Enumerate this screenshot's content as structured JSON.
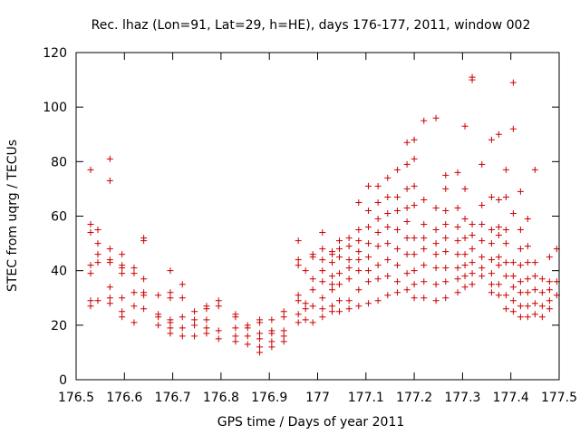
{
  "chart_data": {
    "type": "scatter",
    "title": "Rec. lhaz (Lon=91, Lat=29, h=HE), days 176-177, 2011, window 002",
    "xlabel": "GPS time / Days of year 2011",
    "ylabel": "STEC from uqrg / TECUs",
    "xlim": [
      176.5,
      177.5
    ],
    "ylim": [
      0,
      120
    ],
    "xticks": [
      "176.5",
      "176.6",
      "176.7",
      "176.8",
      "176.9",
      "177",
      "177.1",
      "177.2",
      "177.3",
      "177.4",
      "177.5"
    ],
    "yticks": [
      "0",
      "20",
      "40",
      "60",
      "80",
      "100",
      "120"
    ],
    "grid": false,
    "legend": "none",
    "marker": "plus",
    "color": "#cc0000",
    "points": [
      [
        176.53,
        77
      ],
      [
        176.53,
        57
      ],
      [
        176.53,
        54
      ],
      [
        176.53,
        42
      ],
      [
        176.53,
        39
      ],
      [
        176.53,
        29
      ],
      [
        176.53,
        27
      ],
      [
        176.545,
        55
      ],
      [
        176.545,
        50
      ],
      [
        176.545,
        46
      ],
      [
        176.545,
        43
      ],
      [
        176.545,
        29
      ],
      [
        176.57,
        81
      ],
      [
        176.57,
        73
      ],
      [
        176.57,
        48
      ],
      [
        176.57,
        44
      ],
      [
        176.57,
        43
      ],
      [
        176.57,
        34
      ],
      [
        176.57,
        30
      ],
      [
        176.57,
        28
      ],
      [
        176.595,
        46
      ],
      [
        176.595,
        42
      ],
      [
        176.595,
        41
      ],
      [
        176.595,
        39
      ],
      [
        176.595,
        30
      ],
      [
        176.595,
        25
      ],
      [
        176.595,
        23
      ],
      [
        176.62,
        41
      ],
      [
        176.62,
        39
      ],
      [
        176.62,
        32
      ],
      [
        176.62,
        27
      ],
      [
        176.62,
        21
      ],
      [
        176.64,
        52
      ],
      [
        176.64,
        51
      ],
      [
        176.64,
        37
      ],
      [
        176.64,
        32
      ],
      [
        176.64,
        31
      ],
      [
        176.64,
        26
      ],
      [
        176.67,
        31
      ],
      [
        176.67,
        24
      ],
      [
        176.67,
        23
      ],
      [
        176.67,
        20
      ],
      [
        176.695,
        40
      ],
      [
        176.695,
        32
      ],
      [
        176.695,
        30
      ],
      [
        176.695,
        22
      ],
      [
        176.695,
        21
      ],
      [
        176.695,
        19
      ],
      [
        176.695,
        17
      ],
      [
        176.72,
        35
      ],
      [
        176.72,
        30
      ],
      [
        176.72,
        23
      ],
      [
        176.72,
        19
      ],
      [
        176.72,
        16
      ],
      [
        176.745,
        25
      ],
      [
        176.745,
        22
      ],
      [
        176.745,
        20
      ],
      [
        176.745,
        16
      ],
      [
        176.77,
        27
      ],
      [
        176.77,
        26
      ],
      [
        176.77,
        22
      ],
      [
        176.77,
        19
      ],
      [
        176.77,
        17
      ],
      [
        176.795,
        29
      ],
      [
        176.795,
        27
      ],
      [
        176.795,
        18
      ],
      [
        176.795,
        15
      ],
      [
        176.83,
        24
      ],
      [
        176.83,
        23
      ],
      [
        176.83,
        19
      ],
      [
        176.83,
        16
      ],
      [
        176.83,
        14
      ],
      [
        176.855,
        20
      ],
      [
        176.855,
        19
      ],
      [
        176.855,
        16
      ],
      [
        176.855,
        13
      ],
      [
        176.88,
        22
      ],
      [
        176.88,
        21
      ],
      [
        176.88,
        17
      ],
      [
        176.88,
        15
      ],
      [
        176.88,
        12
      ],
      [
        176.88,
        10
      ],
      [
        176.905,
        22
      ],
      [
        176.905,
        18
      ],
      [
        176.905,
        17
      ],
      [
        176.905,
        14
      ],
      [
        176.905,
        12
      ],
      [
        176.93,
        25
      ],
      [
        176.93,
        23
      ],
      [
        176.93,
        18
      ],
      [
        176.93,
        16
      ],
      [
        176.93,
        14
      ],
      [
        176.96,
        51
      ],
      [
        176.96,
        44
      ],
      [
        176.96,
        42
      ],
      [
        176.96,
        31
      ],
      [
        176.96,
        29
      ],
      [
        176.96,
        24
      ],
      [
        176.96,
        21
      ],
      [
        176.975,
        40
      ],
      [
        176.975,
        28
      ],
      [
        176.975,
        26
      ],
      [
        176.975,
        22
      ],
      [
        176.99,
        46
      ],
      [
        176.99,
        45
      ],
      [
        176.99,
        37
      ],
      [
        176.99,
        33
      ],
      [
        176.99,
        27
      ],
      [
        176.99,
        21
      ],
      [
        177.01,
        54
      ],
      [
        177.01,
        48
      ],
      [
        177.01,
        44
      ],
      [
        177.01,
        40
      ],
      [
        177.01,
        36
      ],
      [
        177.01,
        30
      ],
      [
        177.01,
        26
      ],
      [
        177.01,
        23
      ],
      [
        177.03,
        47
      ],
      [
        177.03,
        46
      ],
      [
        177.03,
        43
      ],
      [
        177.03,
        38
      ],
      [
        177.03,
        35
      ],
      [
        177.03,
        33
      ],
      [
        177.03,
        27
      ],
      [
        177.03,
        25
      ],
      [
        177.045,
        51
      ],
      [
        177.045,
        48
      ],
      [
        177.045,
        45
      ],
      [
        177.045,
        39
      ],
      [
        177.045,
        35
      ],
      [
        177.045,
        29
      ],
      [
        177.045,
        25
      ],
      [
        177.065,
        52
      ],
      [
        177.065,
        49
      ],
      [
        177.065,
        44
      ],
      [
        177.065,
        41
      ],
      [
        177.065,
        37
      ],
      [
        177.065,
        29
      ],
      [
        177.065,
        26
      ],
      [
        177.085,
        65
      ],
      [
        177.085,
        55
      ],
      [
        177.085,
        51
      ],
      [
        177.085,
        47
      ],
      [
        177.085,
        44
      ],
      [
        177.085,
        40
      ],
      [
        177.085,
        33
      ],
      [
        177.085,
        27
      ],
      [
        177.105,
        71
      ],
      [
        177.105,
        62
      ],
      [
        177.105,
        56
      ],
      [
        177.105,
        50
      ],
      [
        177.105,
        45
      ],
      [
        177.105,
        40
      ],
      [
        177.105,
        36
      ],
      [
        177.105,
        28
      ],
      [
        177.125,
        71
      ],
      [
        177.125,
        65
      ],
      [
        177.125,
        59
      ],
      [
        177.125,
        54
      ],
      [
        177.125,
        49
      ],
      [
        177.125,
        42
      ],
      [
        177.125,
        37
      ],
      [
        177.125,
        29
      ],
      [
        177.145,
        74
      ],
      [
        177.145,
        67
      ],
      [
        177.145,
        61
      ],
      [
        177.145,
        56
      ],
      [
        177.145,
        50
      ],
      [
        177.145,
        44
      ],
      [
        177.145,
        38
      ],
      [
        177.145,
        31
      ],
      [
        177.165,
        77
      ],
      [
        177.165,
        67
      ],
      [
        177.165,
        62
      ],
      [
        177.165,
        55
      ],
      [
        177.165,
        48
      ],
      [
        177.165,
        42
      ],
      [
        177.165,
        36
      ],
      [
        177.165,
        32
      ],
      [
        177.185,
        87
      ],
      [
        177.185,
        79
      ],
      [
        177.185,
        70
      ],
      [
        177.185,
        63
      ],
      [
        177.185,
        58
      ],
      [
        177.185,
        52
      ],
      [
        177.185,
        46
      ],
      [
        177.185,
        39
      ],
      [
        177.185,
        33
      ],
      [
        177.2,
        88
      ],
      [
        177.2,
        81
      ],
      [
        177.2,
        71
      ],
      [
        177.2,
        64
      ],
      [
        177.2,
        52
      ],
      [
        177.2,
        46
      ],
      [
        177.2,
        40
      ],
      [
        177.2,
        35
      ],
      [
        177.2,
        30
      ],
      [
        177.22,
        95
      ],
      [
        177.22,
        66
      ],
      [
        177.22,
        57
      ],
      [
        177.22,
        52
      ],
      [
        177.22,
        48
      ],
      [
        177.22,
        42
      ],
      [
        177.22,
        36
      ],
      [
        177.22,
        30
      ],
      [
        177.245,
        96
      ],
      [
        177.245,
        63
      ],
      [
        177.245,
        55
      ],
      [
        177.245,
        50
      ],
      [
        177.245,
        46
      ],
      [
        177.245,
        41
      ],
      [
        177.245,
        35
      ],
      [
        177.245,
        29
      ],
      [
        177.265,
        75
      ],
      [
        177.265,
        70
      ],
      [
        177.265,
        62
      ],
      [
        177.265,
        57
      ],
      [
        177.265,
        52
      ],
      [
        177.265,
        47
      ],
      [
        177.265,
        41
      ],
      [
        177.265,
        36
      ],
      [
        177.265,
        30
      ],
      [
        177.29,
        76
      ],
      [
        177.29,
        63
      ],
      [
        177.29,
        56
      ],
      [
        177.29,
        51
      ],
      [
        177.29,
        46
      ],
      [
        177.29,
        41
      ],
      [
        177.29,
        37
      ],
      [
        177.29,
        32
      ],
      [
        177.305,
        93
      ],
      [
        177.305,
        70
      ],
      [
        177.305,
        59
      ],
      [
        177.305,
        52
      ],
      [
        177.305,
        46
      ],
      [
        177.305,
        42
      ],
      [
        177.305,
        38
      ],
      [
        177.305,
        34
      ],
      [
        177.32,
        111
      ],
      [
        177.32,
        110
      ],
      [
        177.32,
        57
      ],
      [
        177.32,
        53
      ],
      [
        177.32,
        48
      ],
      [
        177.32,
        43
      ],
      [
        177.32,
        39
      ],
      [
        177.32,
        35
      ],
      [
        177.34,
        79
      ],
      [
        177.34,
        64
      ],
      [
        177.34,
        57
      ],
      [
        177.34,
        51
      ],
      [
        177.34,
        45
      ],
      [
        177.34,
        41
      ],
      [
        177.34,
        38
      ],
      [
        177.36,
        88
      ],
      [
        177.36,
        67
      ],
      [
        177.36,
        55
      ],
      [
        177.36,
        50
      ],
      [
        177.36,
        44
      ],
      [
        177.36,
        39
      ],
      [
        177.36,
        35
      ],
      [
        177.36,
        32
      ],
      [
        177.375,
        90
      ],
      [
        177.375,
        66
      ],
      [
        177.375,
        56
      ],
      [
        177.375,
        53
      ],
      [
        177.375,
        45
      ],
      [
        177.375,
        42
      ],
      [
        177.375,
        35
      ],
      [
        177.375,
        31
      ],
      [
        177.39,
        77
      ],
      [
        177.39,
        67
      ],
      [
        177.39,
        55
      ],
      [
        177.39,
        50
      ],
      [
        177.39,
        43
      ],
      [
        177.39,
        38
      ],
      [
        177.39,
        31
      ],
      [
        177.39,
        26
      ],
      [
        177.405,
        109
      ],
      [
        177.405,
        92
      ],
      [
        177.405,
        61
      ],
      [
        177.405,
        43
      ],
      [
        177.405,
        38
      ],
      [
        177.405,
        34
      ],
      [
        177.405,
        29
      ],
      [
        177.405,
        25
      ],
      [
        177.42,
        69
      ],
      [
        177.42,
        55
      ],
      [
        177.42,
        48
      ],
      [
        177.42,
        42
      ],
      [
        177.42,
        36
      ],
      [
        177.42,
        32
      ],
      [
        177.42,
        27
      ],
      [
        177.42,
        23
      ],
      [
        177.435,
        59
      ],
      [
        177.435,
        49
      ],
      [
        177.435,
        43
      ],
      [
        177.435,
        37
      ],
      [
        177.435,
        32
      ],
      [
        177.435,
        27
      ],
      [
        177.435,
        23
      ],
      [
        177.45,
        77
      ],
      [
        177.45,
        43
      ],
      [
        177.45,
        38
      ],
      [
        177.45,
        33
      ],
      [
        177.45,
        28
      ],
      [
        177.45,
        24
      ],
      [
        177.465,
        37
      ],
      [
        177.465,
        32
      ],
      [
        177.465,
        27
      ],
      [
        177.465,
        23
      ],
      [
        177.48,
        45
      ],
      [
        177.48,
        36
      ],
      [
        177.48,
        33
      ],
      [
        177.48,
        29
      ],
      [
        177.48,
        26
      ],
      [
        177.495,
        48
      ],
      [
        177.495,
        36
      ],
      [
        177.495,
        31
      ]
    ]
  }
}
